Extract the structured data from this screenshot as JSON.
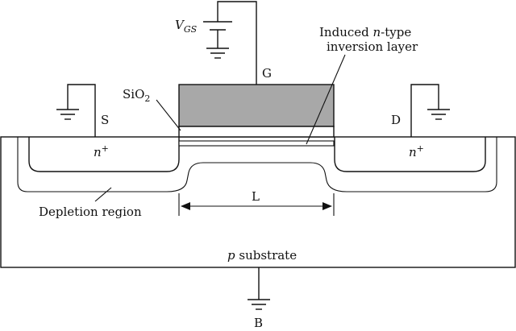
{
  "labels": {
    "vgs_main": "V",
    "vgs_sub": "GS",
    "gate": "G",
    "source": "S",
    "drain": "D",
    "sio2_main": "SiO",
    "sio2_sub": "2",
    "induced_line1_pre": "Induced ",
    "induced_line1_italic": "n",
    "induced_line1_post": "-type",
    "induced_line2": "inversion layer",
    "nplus_left_main": "n",
    "nplus_left_sup": "+",
    "nplus_right_main": "n",
    "nplus_right_sup": "+",
    "channel_length": "L",
    "depletion": "Depletion region",
    "substrate_italic": "p",
    "substrate_rest": " substrate",
    "body": "B"
  },
  "colors": {
    "gate_fill": "#a8a8a8",
    "line": "#111111",
    "background": "#ffffff"
  }
}
